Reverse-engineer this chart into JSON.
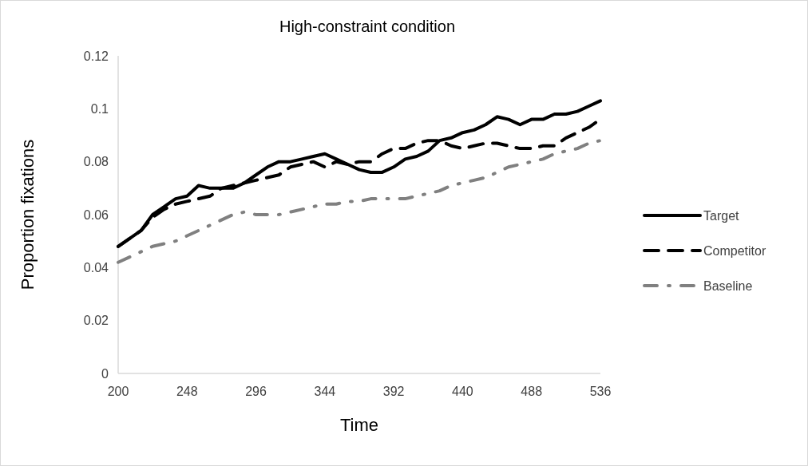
{
  "chart_data": {
    "type": "line",
    "title": "High-constraint condition",
    "xlabel": "Time",
    "ylabel": "Proportion fixations",
    "x": [
      200,
      208,
      216,
      224,
      232,
      240,
      248,
      256,
      264,
      272,
      280,
      288,
      296,
      304,
      312,
      320,
      328,
      336,
      344,
      352,
      360,
      368,
      376,
      384,
      392,
      400,
      408,
      416,
      424,
      432,
      440,
      448,
      456,
      464,
      472,
      480,
      488,
      496,
      504,
      512,
      520,
      528,
      536
    ],
    "series": [
      {
        "name": "Target",
        "color": "#000000",
        "line_style": "solid",
        "values": [
          0.048,
          0.051,
          0.054,
          0.06,
          0.063,
          0.066,
          0.067,
          0.071,
          0.07,
          0.07,
          0.07,
          0.072,
          0.075,
          0.078,
          0.08,
          0.08,
          0.081,
          0.082,
          0.083,
          0.081,
          0.079,
          0.077,
          0.076,
          0.076,
          0.078,
          0.081,
          0.082,
          0.084,
          0.088,
          0.089,
          0.091,
          0.092,
          0.094,
          0.097,
          0.096,
          0.094,
          0.096,
          0.096,
          0.098,
          0.098,
          0.099,
          0.101,
          0.103
        ]
      },
      {
        "name": "Competitor",
        "color": "#000000",
        "line_style": "dashed",
        "values": [
          0.048,
          0.051,
          0.054,
          0.059,
          0.062,
          0.064,
          0.065,
          0.066,
          0.067,
          0.07,
          0.071,
          0.072,
          0.073,
          0.074,
          0.075,
          0.078,
          0.079,
          0.08,
          0.078,
          0.08,
          0.079,
          0.08,
          0.08,
          0.083,
          0.085,
          0.085,
          0.087,
          0.088,
          0.088,
          0.086,
          0.085,
          0.086,
          0.087,
          0.087,
          0.086,
          0.085,
          0.085,
          0.086,
          0.086,
          0.089,
          0.091,
          0.093,
          0.096
        ]
      },
      {
        "name": "Baseline",
        "color": "#808080",
        "line_style": "dashdot",
        "values": [
          0.042,
          0.044,
          0.046,
          0.048,
          0.049,
          0.05,
          0.052,
          0.054,
          0.056,
          0.058,
          0.06,
          0.061,
          0.06,
          0.06,
          0.06,
          0.061,
          0.062,
          0.063,
          0.064,
          0.064,
          0.065,
          0.065,
          0.066,
          0.066,
          0.066,
          0.066,
          0.067,
          0.068,
          0.069,
          0.071,
          0.072,
          0.073,
          0.074,
          0.076,
          0.078,
          0.079,
          0.08,
          0.081,
          0.083,
          0.084,
          0.085,
          0.087,
          0.088
        ]
      }
    ],
    "xlim": [
      200,
      536
    ],
    "xticks": [
      200,
      248,
      296,
      344,
      392,
      440,
      488,
      536
    ],
    "ylim": [
      0,
      0.12
    ],
    "yticks": [
      {
        "value": 0,
        "label": "0"
      },
      {
        "value": 0.02,
        "label": "0.02"
      },
      {
        "value": 0.04,
        "label": "0.04"
      },
      {
        "value": 0.06,
        "label": "0.06"
      },
      {
        "value": 0.08,
        "label": "0.08"
      },
      {
        "value": 0.1,
        "label": "0.1"
      },
      {
        "value": 0.12,
        "label": "0.12"
      }
    ],
    "grid": false,
    "legend": "right",
    "marker": "none"
  }
}
